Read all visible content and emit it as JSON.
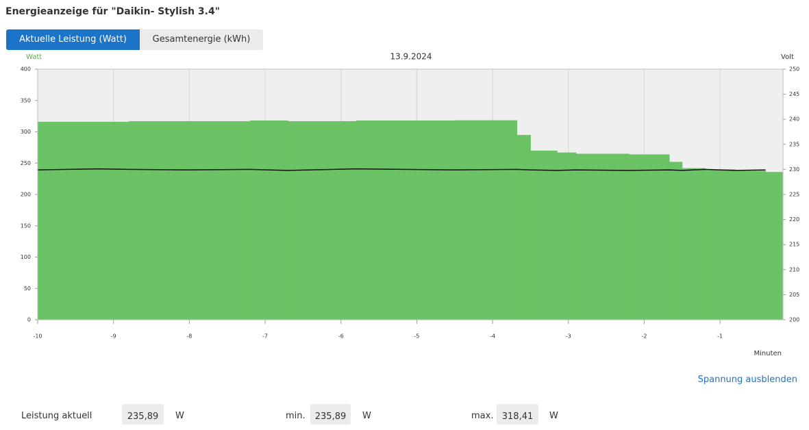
{
  "header": {
    "title": "Energieanzeige für \"Daikin- Stylish 3.4\""
  },
  "tabs": [
    {
      "label": "Aktuelle Leistung (Watt)",
      "active": true
    },
    {
      "label": "Gesamtenergie (kWh)",
      "active": false
    }
  ],
  "chart_data": {
    "type": "step-area",
    "title": "13.9.2024",
    "y_label": "Watt",
    "y2_label": "Volt",
    "x_label": "Minuten",
    "x": [
      -10,
      -9.2,
      -8.8,
      -8,
      -7.2,
      -6.7,
      -5.8,
      -4.5,
      -3.68,
      -3.5,
      -3.15,
      -2.9,
      -2.2,
      -1.67,
      -1.5,
      -1.2,
      -0.8,
      -0.4
    ],
    "series": [
      {
        "color": "#6cc365",
        "values": [
          316,
          316,
          317,
          317,
          318,
          317,
          318,
          318.41,
          295,
          270,
          267,
          265,
          264,
          252,
          242,
          240,
          238,
          235.89
        ]
      },
      {
        "color": "#111111",
        "axis": "y2",
        "values": [
          229.9,
          230.1,
          230.0,
          229.9,
          230.0,
          229.8,
          230.1,
          229.9,
          230.0,
          229.9,
          229.8,
          229.9,
          229.8,
          229.9,
          229.8,
          230.0,
          229.8,
          229.9
        ]
      }
    ],
    "xlim": [
      -10,
      -0.17
    ],
    "xticks": [
      -10,
      -9,
      -8,
      -7,
      -6,
      -5,
      -4,
      -3,
      -2,
      -1
    ],
    "ylim": [
      0,
      400
    ],
    "yticks": [
      0,
      50,
      100,
      150,
      200,
      250,
      300,
      350,
      400
    ],
    "y2lim": [
      200,
      250
    ],
    "y2ticks": [
      200,
      205,
      210,
      215,
      220,
      225,
      230,
      235,
      240,
      245,
      250
    ],
    "grid": true
  },
  "link": "Spannung ausblenden",
  "stats": [
    {
      "label": "Leistung aktuell",
      "value": "235,89",
      "unit": "W"
    },
    {
      "label": "min.",
      "value": "235,89",
      "unit": "W"
    },
    {
      "label": "max.",
      "value": "318,41",
      "unit": "W"
    }
  ]
}
